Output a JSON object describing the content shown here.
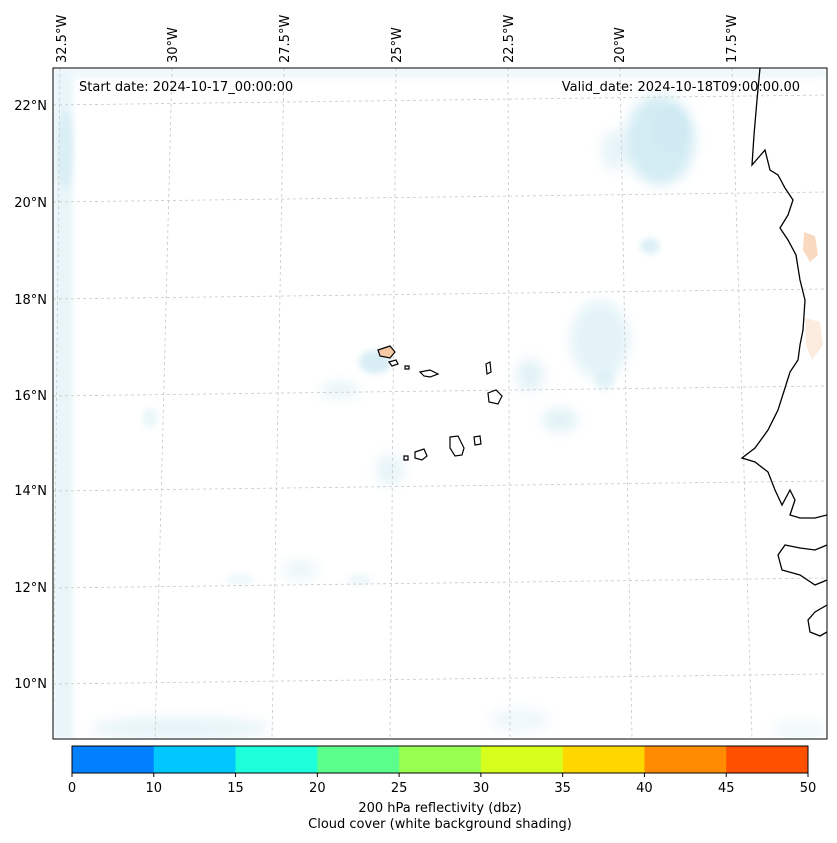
{
  "map": {
    "start_date": "Start date: 2024-10-17_00:00:00",
    "valid_date": "Valid_date: 2024-10-18T09:00:00.00",
    "lon_labels": [
      "32.5°W",
      "30°W",
      "27.5°W",
      "25°W",
      "22.5°W",
      "20°W",
      "17.5°W"
    ],
    "lat_labels": [
      "22°N",
      "20°N",
      "18°N",
      "16°N",
      "14°N",
      "12°N",
      "10°N"
    ],
    "colors": {
      "cloud": "#bfe3ee",
      "coast": "#000000",
      "grid": "#c8c8c8",
      "reflectivity_patch": "#f6c9a4"
    }
  },
  "colorbar": {
    "ticks": [
      "0",
      "10",
      "15",
      "20",
      "25",
      "30",
      "35",
      "40",
      "45",
      "50"
    ],
    "colors": [
      "#0080ff",
      "#00c8ff",
      "#1effdc",
      "#5aff8c",
      "#96ff50",
      "#d7ff1e",
      "#ffd700",
      "#ff8c00",
      "#ff5000"
    ],
    "label_line1": "200 hPa reflectivity (dbz)",
    "label_line2": "Cloud cover (white background shading)"
  }
}
